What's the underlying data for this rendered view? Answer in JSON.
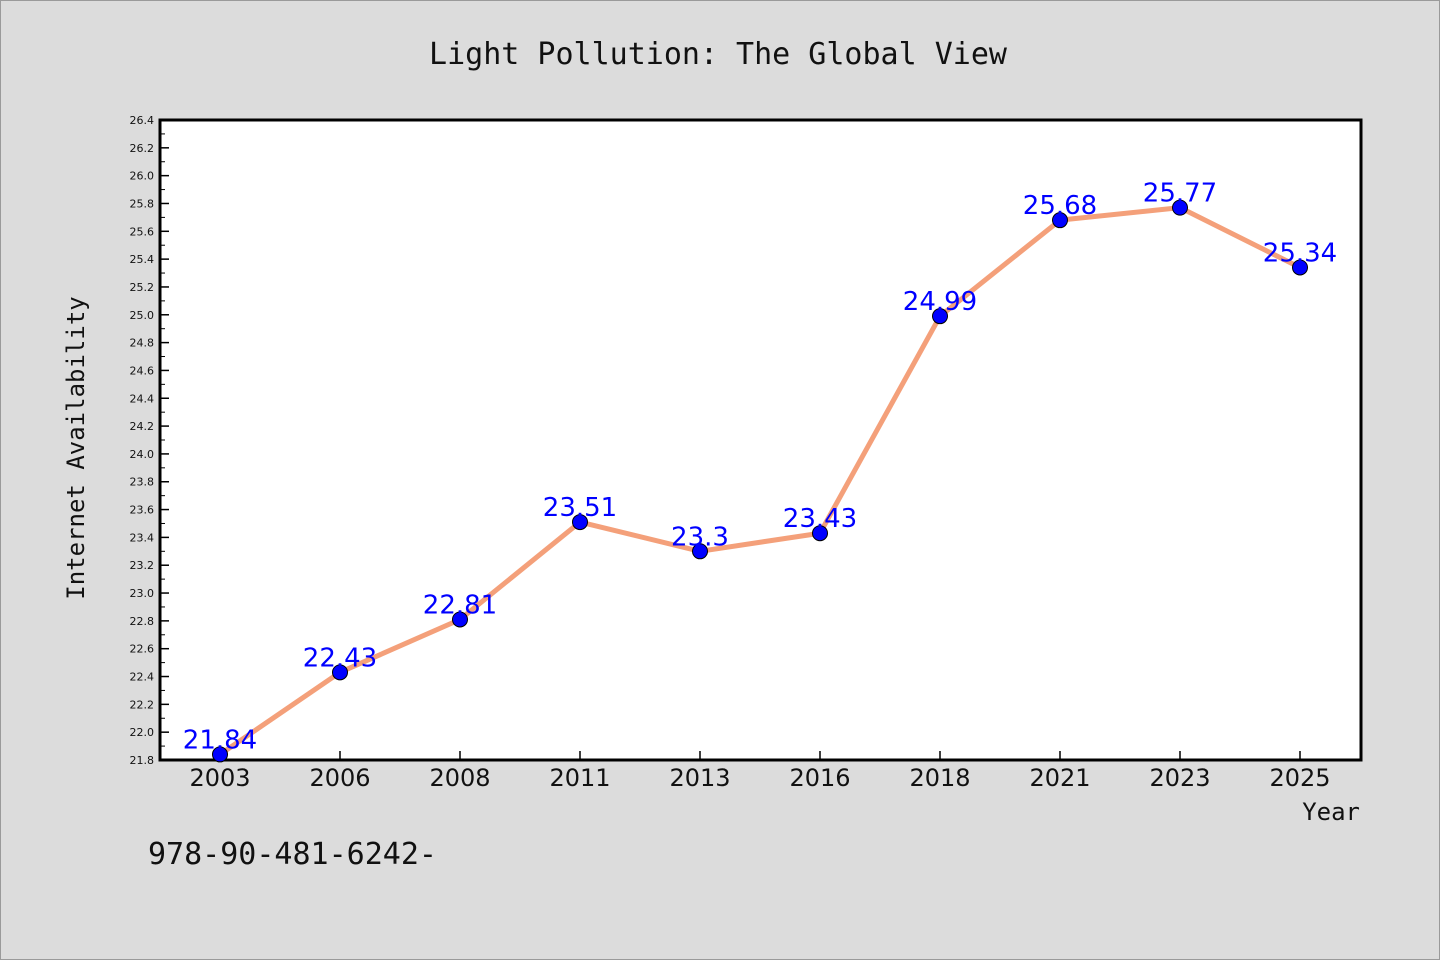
{
  "chart_data": {
    "type": "line",
    "title": "Light Pollution: The Global View",
    "xlabel": "Year",
    "ylabel": "Internet Availability",
    "categories": [
      "2003",
      "2006",
      "2008",
      "2011",
      "2013",
      "2016",
      "2018",
      "2021",
      "2023",
      "2025"
    ],
    "series": [
      {
        "values": [
          21.84,
          22.43,
          22.81,
          23.51,
          23.3,
          23.43,
          24.99,
          25.68,
          25.77,
          25.34
        ],
        "line_color": "#f4a07a",
        "marker_color": "#0000ff"
      }
    ],
    "data_labels": [
      "21.84",
      "22.43",
      "22.81",
      "23.51",
      "23.3",
      "23.43",
      "24.99",
      "25.68",
      "25.77",
      "25.34"
    ],
    "ylim": [
      21.8,
      26.4
    ],
    "yticks": [
      "21.8",
      "22.0",
      "22.2",
      "22.4",
      "22.6",
      "22.8",
      "23.0",
      "23.2",
      "23.4",
      "23.6",
      "23.8",
      "24.0",
      "24.2",
      "24.4",
      "24.6",
      "24.8",
      "25.0",
      "25.2",
      "25.4",
      "25.6",
      "25.8",
      "26.0",
      "26.2",
      "26.4"
    ],
    "grid": false,
    "legend": "none"
  },
  "footnote": "978-90-481-6242-"
}
